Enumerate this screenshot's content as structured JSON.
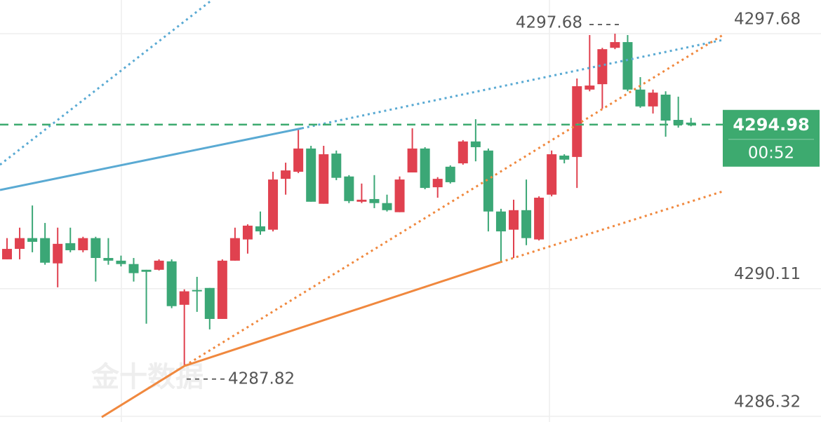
{
  "chart_data": {
    "type": "candlestick",
    "up_color": "#e0414f",
    "down_color": "#3ba776",
    "ylim": [
      4286.15,
      4298.68
    ],
    "yticks": [
      4286.32,
      4290.11,
      4297.68
    ],
    "grid": true,
    "open": [
      4290.98,
      4291.29,
      4291.61,
      4291.61,
      4290.86,
      4291.46,
      4291.25,
      4291.61,
      4291.02,
      4290.94,
      4290.84,
      4290.67,
      4290.67,
      4290.92,
      4289.63,
      4290.07,
      4290.13,
      4289.21,
      4290.94,
      4291.57,
      4291.96,
      4291.86,
      4293.37,
      4293.58,
      4294.27,
      4292.63,
      4294.12,
      4293.44,
      4292.69,
      4292.77,
      4292.65,
      4292.38,
      4293.56,
      4294.27,
      4293.12,
      4293.73,
      4293.83,
      4294.48,
      4294.21,
      4292.4,
      4291.86,
      4292.44,
      4291.57,
      4292.9,
      4294.06,
      4294.02,
      4296.02,
      4296.18,
      4297.26,
      4297.43,
      4296.02,
      4295.52,
      4295.87,
      4295.12,
      4295.04
    ],
    "high": [
      4291.61,
      4291.92,
      4292.58,
      4292.06,
      4291.92,
      4291.92,
      4291.65,
      4291.65,
      4291.61,
      4291.09,
      4291.02,
      4290.67,
      4290.98,
      4290.98,
      4290.09,
      4290.46,
      4290.13,
      4290.98,
      4291.92,
      4292.02,
      4292.4,
      4293.58,
      4293.85,
      4294.87,
      4294.35,
      4294.35,
      4294.21,
      4293.48,
      4293.23,
      4293.48,
      4292.9,
      4293.44,
      4294.87,
      4294.31,
      4293.42,
      4293.77,
      4294.52,
      4295.14,
      4294.27,
      4292.48,
      4292.75,
      4293.35,
      4292.85,
      4294.21,
      4294.1,
      4296.35,
      4297.64,
      4297.26,
      4297.68,
      4297.64,
      4296.39,
      4296.02,
      4295.97,
      4295.81,
      4295.18
    ],
    "low": [
      4290.98,
      4290.98,
      4291.19,
      4290.82,
      4290.15,
      4291.19,
      4291.19,
      4290.32,
      4290.82,
      4290.77,
      4290.32,
      4289.07,
      4290.65,
      4289.53,
      4287.82,
      4289.42,
      4288.9,
      4289.21,
      4290.94,
      4291.15,
      4291.71,
      4291.81,
      4292.9,
      4293.54,
      4292.69,
      4292.63,
      4293.33,
      4292.65,
      4292.65,
      4292.5,
      4292.4,
      4292.38,
      4293.56,
      4293.06,
      4292.81,
      4293.23,
      4293.79,
      4293.89,
      4291.81,
      4290.9,
      4291.02,
      4291.4,
      4291.54,
      4292.85,
      4293.83,
      4293.1,
      4295.97,
      4295.45,
      4297.22,
      4295.97,
      4295.48,
      4295.31,
      4294.62,
      4294.89,
      4294.93
    ],
    "close": [
      4291.29,
      4291.61,
      4291.5,
      4290.88,
      4291.44,
      4291.25,
      4291.61,
      4291.02,
      4290.94,
      4290.84,
      4290.57,
      4290.61,
      4290.94,
      4289.59,
      4290.03,
      4290.03,
      4289.21,
      4290.94,
      4291.61,
      4291.98,
      4291.81,
      4293.35,
      4293.62,
      4294.27,
      4292.69,
      4294.1,
      4293.4,
      4292.71,
      4292.75,
      4292.65,
      4292.44,
      4293.35,
      4294.27,
      4293.1,
      4293.37,
      4293.27,
      4294.48,
      4294.31,
      4292.4,
      4291.81,
      4292.44,
      4291.61,
      4292.81,
      4294.1,
      4293.94,
      4296.12,
      4296.14,
      4297.22,
      4297.43,
      4296.02,
      4295.52,
      4295.93,
      4295.1,
      4294.98,
      4294.98
    ],
    "high_marker": 4297.68,
    "low_marker": 4287.82,
    "last_price": 4294.98,
    "last_price_color": "#3daa6f",
    "countdown": "00:52",
    "watermark": "金十数据"
  }
}
